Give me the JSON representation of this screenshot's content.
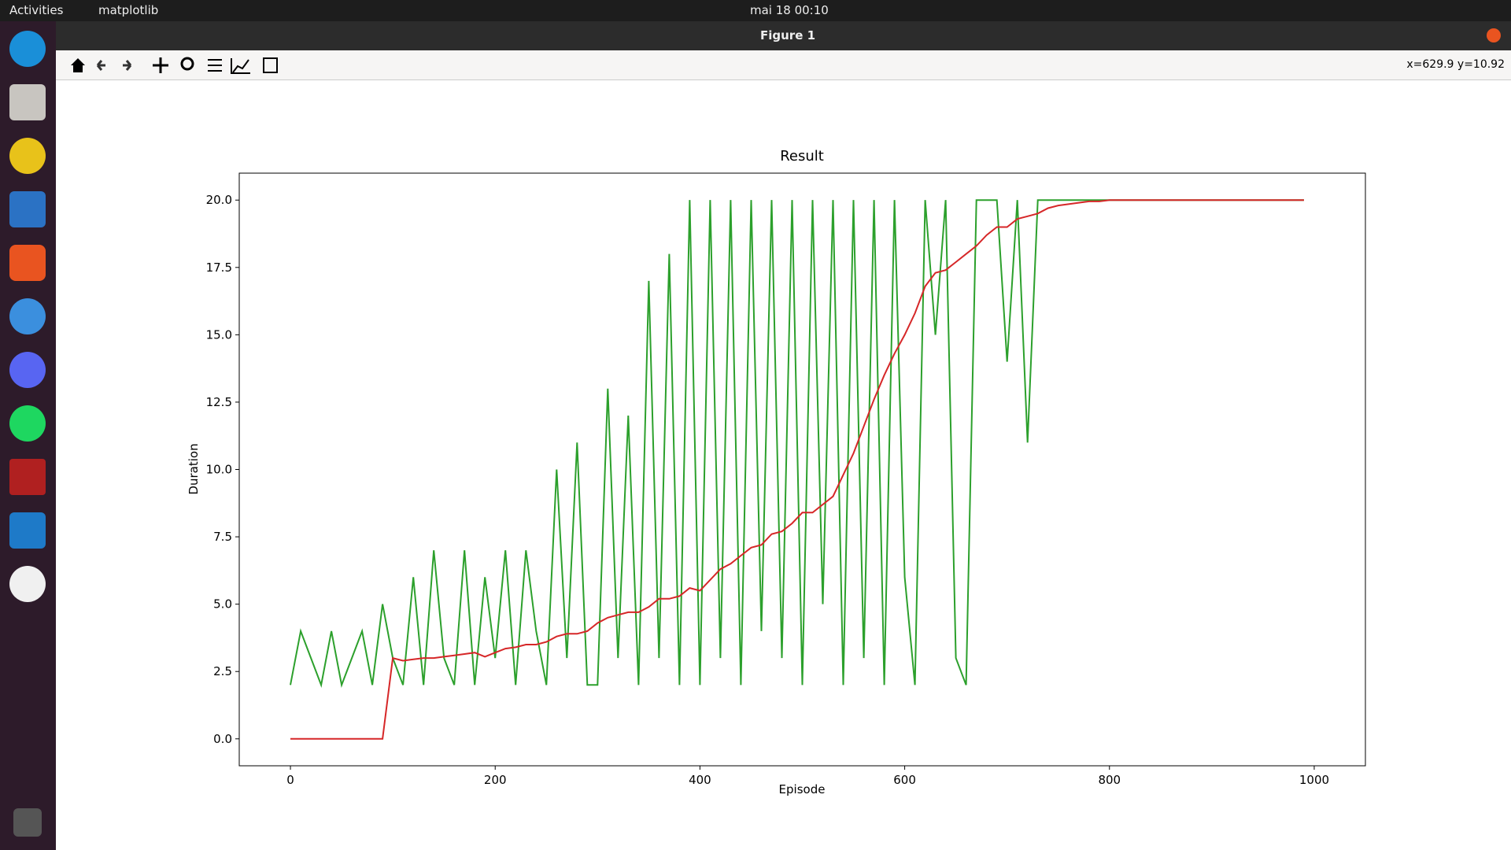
{
  "top_bar": {
    "activities": "Activities",
    "app": "matplotlib",
    "clock": "mai 18  00:10"
  },
  "window": {
    "title": "Figure 1",
    "status": "x=629.9 y=10.92"
  },
  "chart_data": {
    "type": "line",
    "title": "Result",
    "x_label": "Episode",
    "y_label": "Duration",
    "x": [
      0,
      10,
      20,
      30,
      40,
      50,
      60,
      70,
      80,
      90,
      100,
      110,
      120,
      130,
      140,
      150,
      160,
      170,
      180,
      190,
      200,
      210,
      220,
      230,
      240,
      250,
      260,
      270,
      280,
      290,
      300,
      310,
      320,
      330,
      340,
      350,
      360,
      370,
      380,
      390,
      400,
      410,
      420,
      430,
      440,
      450,
      460,
      470,
      480,
      490,
      500,
      510,
      520,
      530,
      540,
      550,
      560,
      570,
      580,
      590,
      600,
      610,
      620,
      630,
      640,
      650,
      660,
      670,
      680,
      690,
      700,
      710,
      720,
      730,
      740,
      750,
      760,
      770,
      780,
      790,
      800,
      810,
      820,
      830,
      840,
      850,
      860,
      870,
      880,
      890,
      900,
      910,
      920,
      930,
      940,
      950,
      960,
      970,
      980,
      990
    ],
    "series": [
      {
        "color": "#2ca02c",
        "values": [
          2,
          4,
          3,
          2,
          4,
          2,
          3,
          4,
          2,
          5,
          3,
          2,
          6,
          2,
          7,
          3,
          2,
          7,
          2,
          6,
          3,
          7,
          2,
          7,
          4,
          2,
          10,
          3,
          11,
          2,
          2,
          13,
          3,
          12,
          2,
          17,
          3,
          18,
          2,
          20,
          2,
          20,
          3,
          20,
          2,
          20,
          4,
          20,
          3,
          20,
          2,
          20,
          5,
          20,
          2,
          20,
          3,
          20,
          2,
          20,
          6,
          2,
          20,
          15,
          20,
          3,
          2,
          20,
          20,
          20,
          14,
          20,
          11,
          20,
          20,
          20,
          20,
          20,
          20,
          20,
          20,
          20,
          20,
          20,
          20,
          20,
          20,
          20,
          20,
          20,
          20,
          20,
          20,
          20,
          20,
          20,
          20,
          20,
          20,
          20
        ]
      },
      {
        "color": "#d62728",
        "values": [
          0,
          0,
          0,
          0,
          0,
          0,
          0,
          0,
          0,
          0,
          3.0,
          2.9,
          2.95,
          3.0,
          3.0,
          3.05,
          3.1,
          3.15,
          3.2,
          3.05,
          3.2,
          3.35,
          3.4,
          3.5,
          3.5,
          3.6,
          3.8,
          3.9,
          3.9,
          4.0,
          4.3,
          4.5,
          4.6,
          4.7,
          4.7,
          4.9,
          5.2,
          5.2,
          5.3,
          5.6,
          5.5,
          5.9,
          6.3,
          6.5,
          6.8,
          7.1,
          7.2,
          7.6,
          7.7,
          8.0,
          8.4,
          8.4,
          8.7,
          9.0,
          9.8,
          10.6,
          11.6,
          12.6,
          13.5,
          14.3,
          15.0,
          15.8,
          16.8,
          17.3,
          17.4,
          17.7,
          18.0,
          18.3,
          18.7,
          19.0,
          19.0,
          19.3,
          19.4,
          19.5,
          19.7,
          19.8,
          19.85,
          19.9,
          19.95,
          19.95,
          20,
          20,
          20,
          20,
          20,
          20,
          20,
          20,
          20,
          20,
          20,
          20,
          20,
          20,
          20,
          20,
          20,
          20,
          20,
          20
        ]
      }
    ],
    "xlim": [
      -50,
      1050
    ],
    "ylim": [
      -1,
      21
    ],
    "xticks": [
      0,
      200,
      400,
      600,
      800,
      1000
    ],
    "yticks": [
      {
        "value": 0,
        "label": "0.0"
      },
      {
        "value": 2.5,
        "label": "2.5"
      },
      {
        "value": 5,
        "label": "5.0"
      },
      {
        "value": 7.5,
        "label": "7.5"
      },
      {
        "value": 10,
        "label": "10.0"
      },
      {
        "value": 12.5,
        "label": "12.5"
      },
      {
        "value": 15,
        "label": "15.0"
      },
      {
        "value": 17.5,
        "label": "17.5"
      },
      {
        "value": 20,
        "label": "20.0"
      }
    ]
  }
}
